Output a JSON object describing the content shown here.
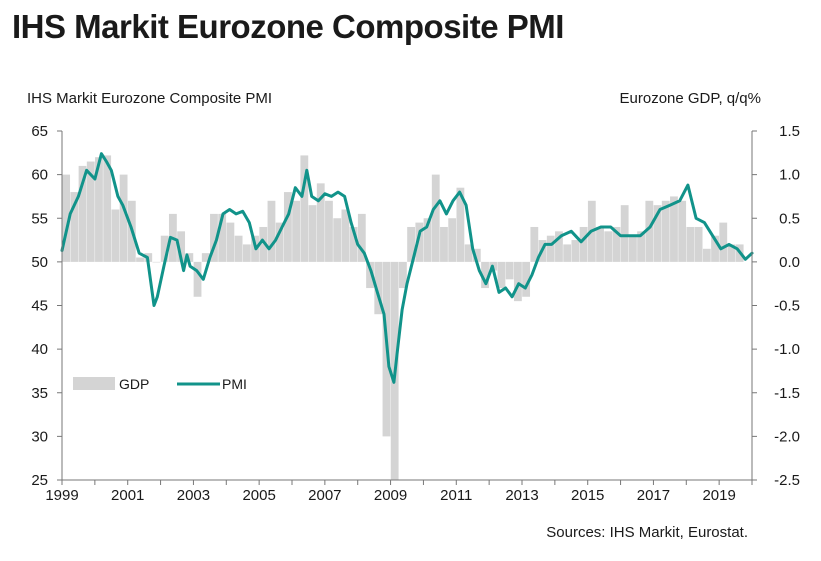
{
  "title": "IHS Markit Eurozone Composite PMI",
  "source": "Sources: IHS Markit, Eurostat.",
  "colors": {
    "pmi": "#11938a",
    "gdp": "#d4d4d4",
    "axis": "#777777"
  },
  "chart_data": {
    "type": "bar+line",
    "title": "IHS Markit Eurozone Composite PMI",
    "y_left_label": "IHS Markit Eurozone Composite PMI",
    "y_right_label": "Eurozone GDP, q/q%",
    "y_left_range": [
      25,
      65
    ],
    "y_left_ticks": [
      "65",
      "60",
      "55",
      "50",
      "45",
      "40",
      "35",
      "30",
      "25"
    ],
    "y_right_range": [
      -2.5,
      1.5
    ],
    "y_right_ticks": [
      "1.5",
      "1.0",
      "0.5",
      "0.0",
      "-0.5",
      "-1.0",
      "-1.5",
      "-2.0",
      "-2.5"
    ],
    "x_range": [
      1999,
      2020
    ],
    "x_ticks": [
      "1999",
      "2001",
      "2003",
      "2005",
      "2007",
      "2009",
      "2011",
      "2013",
      "2015",
      "2017",
      "2019"
    ],
    "legend": {
      "position": "middle-left",
      "items": [
        "GDP",
        "PMI"
      ]
    },
    "gdp_series": {
      "name": "GDP",
      "quarters": [
        "1999Q1",
        "1999Q2",
        "1999Q3",
        "1999Q4",
        "2000Q1",
        "2000Q2",
        "2000Q3",
        "2000Q4",
        "2001Q1",
        "2001Q2",
        "2001Q3",
        "2001Q4",
        "2002Q1",
        "2002Q2",
        "2002Q3",
        "2002Q4",
        "2003Q1",
        "2003Q2",
        "2003Q3",
        "2003Q4",
        "2004Q1",
        "2004Q2",
        "2004Q3",
        "2004Q4",
        "2005Q1",
        "2005Q2",
        "2005Q3",
        "2005Q4",
        "2006Q1",
        "2006Q2",
        "2006Q3",
        "2006Q4",
        "2007Q1",
        "2007Q2",
        "2007Q3",
        "2007Q4",
        "2008Q1",
        "2008Q2",
        "2008Q3",
        "2008Q4",
        "2009Q1",
        "2009Q2",
        "2009Q3",
        "2009Q4",
        "2010Q1",
        "2010Q2",
        "2010Q3",
        "2010Q4",
        "2011Q1",
        "2011Q2",
        "2011Q3",
        "2011Q4",
        "2012Q1",
        "2012Q2",
        "2012Q3",
        "2012Q4",
        "2013Q1",
        "2013Q2",
        "2013Q3",
        "2013Q4",
        "2014Q1",
        "2014Q2",
        "2014Q3",
        "2014Q4",
        "2015Q1",
        "2015Q2",
        "2015Q3",
        "2015Q4",
        "2016Q1",
        "2016Q2",
        "2016Q3",
        "2016Q4",
        "2017Q1",
        "2017Q2",
        "2017Q3",
        "2017Q4",
        "2018Q1",
        "2018Q2",
        "2018Q3",
        "2018Q4",
        "2019Q1",
        "2019Q2",
        "2019Q3"
      ],
      "values": [
        1.0,
        0.8,
        1.1,
        1.15,
        1.2,
        1.22,
        0.6,
        1.0,
        0.7,
        0.05,
        0.1,
        0.0,
        0.3,
        0.55,
        0.35,
        0.1,
        -0.4,
        0.1,
        0.55,
        0.55,
        0.45,
        0.3,
        0.2,
        0.3,
        0.4,
        0.7,
        0.45,
        0.8,
        0.7,
        1.22,
        0.65,
        0.9,
        0.7,
        0.5,
        0.6,
        0.4,
        0.55,
        -0.3,
        -0.6,
        -2.0,
        -2.8,
        -0.3,
        0.4,
        0.45,
        0.5,
        1.0,
        0.4,
        0.5,
        0.85,
        0.2,
        0.15,
        -0.3,
        -0.1,
        -0.3,
        -0.2,
        -0.45,
        -0.4,
        0.4,
        0.25,
        0.3,
        0.35,
        0.2,
        0.25,
        0.4,
        0.7,
        0.4,
        0.35,
        0.4,
        0.65,
        0.3,
        0.35,
        0.7,
        0.65,
        0.7,
        0.75,
        0.7,
        0.4,
        0.4,
        0.15,
        0.3,
        0.45,
        0.2,
        0.2
      ]
    },
    "pmi_series": {
      "name": "PMI",
      "x": [
        1999.0,
        1999.25,
        1999.5,
        1999.75,
        2000.0,
        2000.2,
        2000.35,
        2000.5,
        2000.7,
        2000.85,
        2001.1,
        2001.35,
        2001.6,
        2001.8,
        2001.9,
        2002.1,
        2002.3,
        2002.5,
        2002.7,
        2002.8,
        2002.9,
        2003.1,
        2003.3,
        2003.5,
        2003.7,
        2003.9,
        2004.1,
        2004.3,
        2004.5,
        2004.7,
        2004.9,
        2005.1,
        2005.3,
        2005.5,
        2005.7,
        2005.9,
        2006.1,
        2006.3,
        2006.45,
        2006.6,
        2006.8,
        2007.0,
        2007.2,
        2007.4,
        2007.6,
        2007.8,
        2008.0,
        2008.2,
        2008.4,
        2008.6,
        2008.8,
        2008.95,
        2009.1,
        2009.2,
        2009.35,
        2009.5,
        2009.7,
        2009.9,
        2010.1,
        2010.3,
        2010.5,
        2010.7,
        2010.9,
        2011.1,
        2011.3,
        2011.5,
        2011.7,
        2011.9,
        2012.1,
        2012.3,
        2012.5,
        2012.7,
        2012.9,
        2013.1,
        2013.3,
        2013.5,
        2013.7,
        2013.9,
        2014.2,
        2014.5,
        2014.8,
        2015.1,
        2015.4,
        2015.7,
        2016.0,
        2016.3,
        2016.6,
        2016.9,
        2017.2,
        2017.5,
        2017.8,
        2018.05,
        2018.3,
        2018.55,
        2018.8,
        2019.05,
        2019.3,
        2019.55,
        2019.8,
        2020.0
      ],
      "values": [
        51.3,
        55.5,
        57.5,
        60.5,
        59.5,
        62.4,
        61.5,
        60.5,
        57.5,
        56.5,
        54.0,
        51.0,
        50.5,
        45.0,
        46.0,
        49.5,
        52.8,
        52.5,
        49.0,
        50.8,
        49.5,
        49.0,
        48.0,
        50.5,
        52.5,
        55.5,
        56.0,
        55.5,
        55.8,
        54.5,
        51.5,
        52.5,
        51.5,
        52.5,
        54.0,
        55.5,
        58.5,
        57.5,
        60.5,
        57.5,
        57.0,
        57.8,
        57.5,
        58.0,
        57.5,
        54.5,
        52.0,
        51.0,
        49.0,
        46.5,
        44.0,
        38.0,
        36.2,
        39.5,
        44.5,
        47.5,
        50.5,
        53.5,
        54.0,
        56.0,
        57.0,
        55.5,
        57.0,
        58.0,
        56.5,
        51.5,
        49.0,
        47.5,
        49.5,
        46.5,
        47.0,
        46.0,
        47.5,
        47.0,
        48.5,
        50.5,
        52.0,
        52.0,
        53.0,
        53.5,
        52.3,
        53.5,
        54.0,
        54.0,
        53.0,
        53.0,
        53.0,
        54.0,
        56.0,
        56.5,
        57.0,
        58.8,
        55.0,
        54.5,
        53.0,
        51.5,
        52.0,
        51.5,
        50.3,
        51.0
      ]
    }
  }
}
